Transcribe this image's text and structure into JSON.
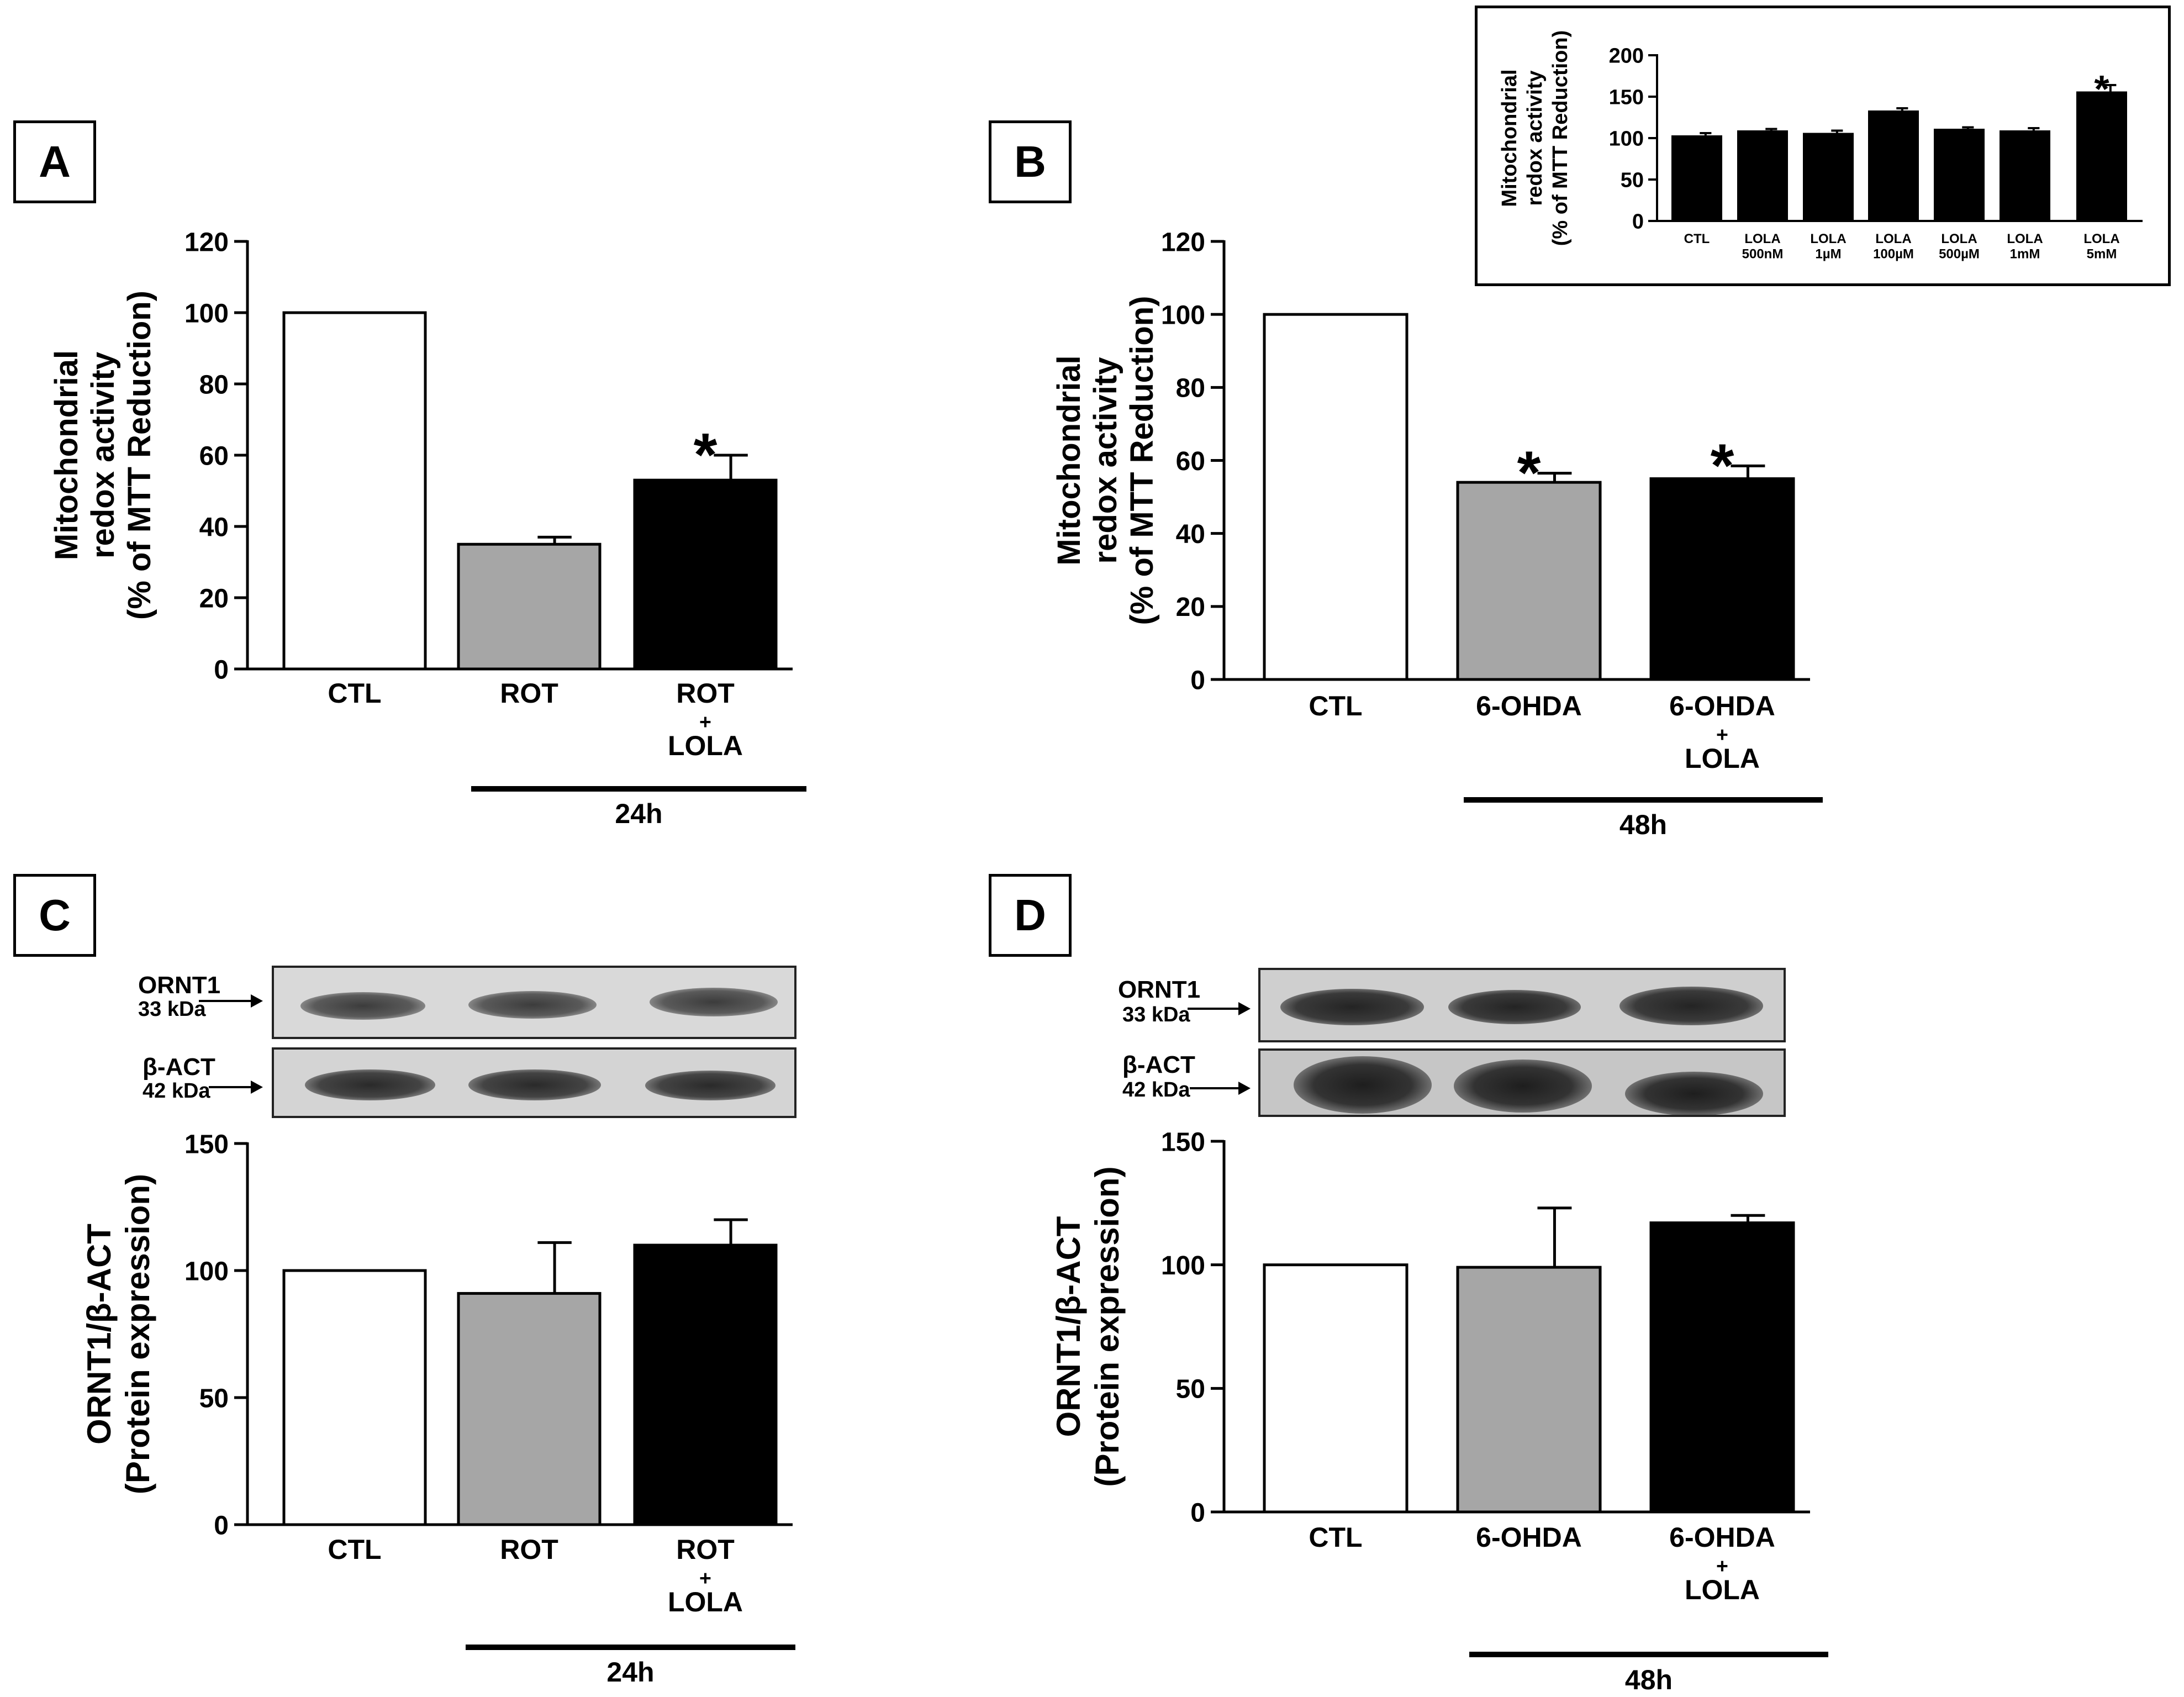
{
  "panels": {
    "A": {
      "letter": "A"
    },
    "B": {
      "letter": "B"
    },
    "C": {
      "letter": "C"
    },
    "D": {
      "letter": "D"
    }
  },
  "blots": {
    "C": {
      "target": "ORNT1",
      "target_kda": "33 kDa",
      "control": "β-ACT",
      "control_kda": "42 kDa"
    },
    "D": {
      "target": "ORNT1",
      "target_kda": "33 kDa",
      "control": "β-ACT",
      "control_kda": "42 kDa"
    }
  },
  "colors": {
    "white_bar": "#ffffff",
    "gray_bar": "#a6a6a6",
    "black_bar": "#000000",
    "axis": "#000000"
  },
  "chart_data": [
    {
      "id": "A",
      "type": "bar",
      "categories": [
        "CTL",
        "ROT",
        "ROT\n+\nLOLA"
      ],
      "values": [
        100,
        35,
        53
      ],
      "errors": [
        0,
        2,
        7
      ],
      "significance": [
        "",
        "",
        "*"
      ],
      "colors": [
        "#ffffff",
        "#a6a6a6",
        "#000000"
      ],
      "ylabel_lines": [
        "Mitochondrial",
        "redox activity",
        "(% of MTT Reduction)"
      ],
      "ylim": [
        0,
        120
      ],
      "yticks": [
        0,
        20,
        40,
        60,
        80,
        100,
        120
      ],
      "group_label": "24h",
      "group_span": [
        1,
        2
      ]
    },
    {
      "id": "B",
      "type": "bar",
      "categories": [
        "CTL",
        "6-OHDA",
        "6-OHDA\n+\nLOLA"
      ],
      "values": [
        100,
        54,
        55
      ],
      "errors": [
        0,
        2.5,
        3.5
      ],
      "significance": [
        "",
        "*",
        "*"
      ],
      "colors": [
        "#ffffff",
        "#a6a6a6",
        "#000000"
      ],
      "ylabel_lines": [
        "Mitochondrial",
        "redox activity",
        "(% of MTT Reduction)"
      ],
      "ylim": [
        0,
        120
      ],
      "yticks": [
        0,
        20,
        40,
        60,
        80,
        100,
        120
      ],
      "group_label": "48h",
      "group_span": [
        1,
        2
      ]
    },
    {
      "id": "B-inset",
      "type": "bar",
      "categories": [
        "CTL",
        "LOLA\n500nM",
        "LOLA\n1µM",
        "LOLA\n100µM",
        "LOLA\n500µM",
        "LOLA\n1mM",
        "LOLA\n5mM"
      ],
      "values": [
        102,
        108,
        105,
        132,
        110,
        108,
        155
      ],
      "errors": [
        4,
        3,
        4,
        4,
        3,
        4,
        9
      ],
      "significance": [
        "",
        "",
        "",
        "",
        "",
        "",
        "*"
      ],
      "colors": [
        "#000000",
        "#000000",
        "#000000",
        "#000000",
        "#000000",
        "#000000",
        "#000000"
      ],
      "ylabel_lines": [
        "Mitochondrial",
        "redox activity",
        "(% of MTT Reduction)"
      ],
      "ylim": [
        0,
        200
      ],
      "yticks": [
        0,
        50,
        100,
        150,
        200
      ]
    },
    {
      "id": "C",
      "type": "bar",
      "categories": [
        "CTL",
        "ROT",
        "ROT\n+\nLOLA"
      ],
      "values": [
        100,
        91,
        110
      ],
      "errors": [
        0,
        20,
        10
      ],
      "significance": [
        "",
        "",
        ""
      ],
      "colors": [
        "#ffffff",
        "#a6a6a6",
        "#000000"
      ],
      "ylabel_lines": [
        "ORNT1/β-ACT",
        "(Protein expression)"
      ],
      "ylim": [
        0,
        150
      ],
      "yticks": [
        0,
        50,
        100,
        150
      ],
      "group_label": "24h",
      "group_span": [
        1,
        2
      ]
    },
    {
      "id": "D",
      "type": "bar",
      "categories": [
        "CTL",
        "6-OHDA",
        "6-OHDA\n+\nLOLA"
      ],
      "values": [
        100,
        99,
        117
      ],
      "errors": [
        0,
        24,
        3
      ],
      "significance": [
        "",
        "",
        ""
      ],
      "colors": [
        "#ffffff",
        "#a6a6a6",
        "#000000"
      ],
      "ylabel_lines": [
        "ORNT1/β-ACT",
        "(Protein expression)"
      ],
      "ylim": [
        0,
        150
      ],
      "yticks": [
        0,
        50,
        100,
        150
      ],
      "group_label": "48h",
      "group_span": [
        1,
        2
      ]
    }
  ]
}
